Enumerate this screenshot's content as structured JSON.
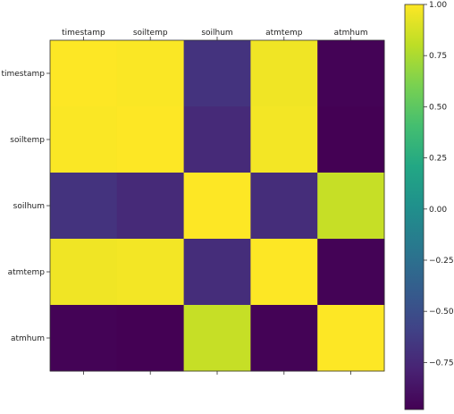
{
  "chart_data": {
    "type": "heatmap",
    "title": "",
    "xlabel": "",
    "ylabel": "",
    "x_categories": [
      "timestamp",
      "soiltemp",
      "soilhum",
      "atmtemp",
      "atmhum"
    ],
    "y_categories": [
      "timestamp",
      "soiltemp",
      "soilhum",
      "atmtemp",
      "atmhum"
    ],
    "x_labels_position": "top",
    "values": [
      [
        1.0,
        0.99,
        -0.68,
        0.96,
        -0.97
      ],
      [
        0.99,
        1.0,
        -0.74,
        0.97,
        -0.98
      ],
      [
        -0.68,
        -0.74,
        1.0,
        -0.72,
        0.83
      ],
      [
        0.96,
        0.97,
        -0.72,
        1.0,
        -0.97
      ],
      [
        -0.97,
        -0.98,
        0.83,
        -0.97,
        1.0
      ]
    ],
    "colormap": "viridis",
    "vmin": -0.98,
    "vmax": 1.0,
    "grid": false,
    "colorbar": {
      "position": "right",
      "ticks": [
        1.0,
        0.75,
        0.5,
        0.25,
        0.0,
        -0.25,
        -0.5,
        -0.75
      ],
      "tick_labels": [
        "1.00",
        "0.75",
        "0.50",
        "0.25",
        "0.00",
        "−0.25",
        "−0.50",
        "−0.75"
      ]
    }
  }
}
